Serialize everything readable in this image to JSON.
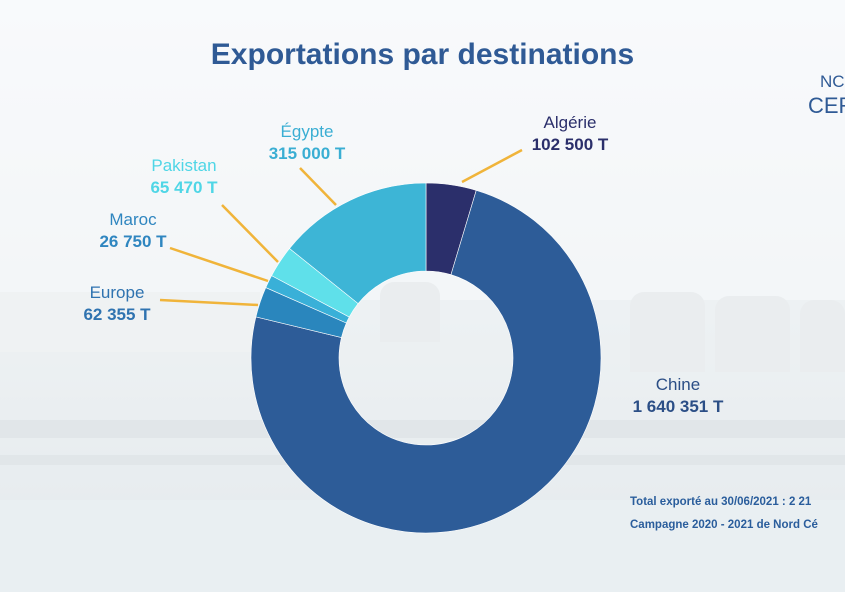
{
  "chart_data": {
    "type": "pie",
    "title": "Exportations par destinations",
    "unit": "T",
    "slices": [
      {
        "name": "Chine",
        "value": 1640351,
        "label": "1 640 351 T",
        "color": "#2d5c98"
      },
      {
        "name": "Europe",
        "value": 62355,
        "label": "62 355 T",
        "color": "#2a86bd"
      },
      {
        "name": "Maroc",
        "value": 26750,
        "label": "26 750 T",
        "color": "#39b0d8"
      },
      {
        "name": "Pakistan",
        "value": 65470,
        "label": "65 470 T",
        "color": "#5fe0ea"
      },
      {
        "name": "Égypte",
        "value": 315000,
        "label": "315 000 T",
        "color": "#3db5d6"
      },
      {
        "name": "Algérie",
        "value": 102500,
        "label": "102 500 T",
        "color": "#2b2f6b"
      }
    ]
  },
  "footer": {
    "line1": "Total exporté au 30/06/2021 : 2 21",
    "line2": "Campagne 2020 - 2021 de Nord Cé"
  },
  "logo": {
    "line1": "NC",
    "line2": "CER"
  },
  "colors": {
    "title": "#2f5a95",
    "leader": "#f0b43a",
    "dark_label": "#2b2f6b"
  }
}
